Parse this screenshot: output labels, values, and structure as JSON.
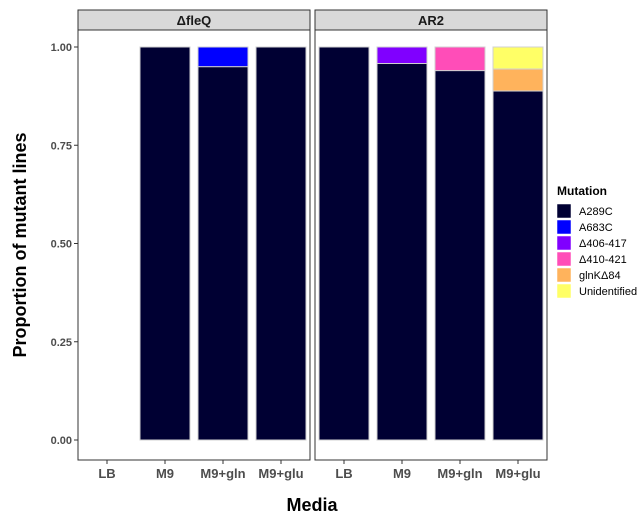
{
  "chart_data": {
    "type": "bar",
    "stacked": true,
    "facets": [
      "ΔfleQ",
      "AR2"
    ],
    "categories": [
      "LB",
      "M9",
      "M9+gln",
      "M9+glu"
    ],
    "xlabel": "Media",
    "ylabel": "Proportion of mutant lines",
    "ylim": [
      0,
      1.05
    ],
    "yticks": [
      0,
      0.25,
      0.5,
      0.75,
      1.0
    ],
    "ytick_labels": [
      "0.00",
      "0.25",
      "0.50",
      "0.75",
      "1.00"
    ],
    "grid": false,
    "legend": {
      "title": "Mutation",
      "position": "right"
    },
    "series": [
      {
        "name": "A289C",
        "color": "#000033",
        "facet_values": {
          "ΔfleQ": [
            0,
            1.0,
            0.95,
            1.0
          ],
          "AR2": [
            1.0,
            0.958,
            0.94,
            0.888
          ]
        }
      },
      {
        "name": "A683C",
        "color": "#0000FF",
        "facet_values": {
          "ΔfleQ": [
            0,
            0,
            0.05,
            0
          ],
          "AR2": [
            0,
            0,
            0,
            0
          ]
        }
      },
      {
        "name": "Δ406-417",
        "color": "#8000FF",
        "facet_values": {
          "ΔfleQ": [
            0,
            0,
            0,
            0
          ],
          "AR2": [
            0,
            0.042,
            0,
            0
          ]
        }
      },
      {
        "name": "Δ410-421",
        "color": "#FF4DB8",
        "facet_values": {
          "ΔfleQ": [
            0,
            0,
            0,
            0
          ],
          "AR2": [
            0,
            0,
            0.06,
            0
          ]
        }
      },
      {
        "name": "glnKΔ84",
        "color": "#FFB35C",
        "facet_values": {
          "ΔfleQ": [
            0,
            0,
            0,
            0
          ],
          "AR2": [
            0,
            0,
            0,
            0.056
          ]
        }
      },
      {
        "name": "Unidentified",
        "color": "#FFFF66",
        "facet_values": {
          "ΔfleQ": [
            0,
            0,
            0,
            0
          ],
          "AR2": [
            0,
            0,
            0,
            0.056
          ]
        }
      }
    ]
  }
}
